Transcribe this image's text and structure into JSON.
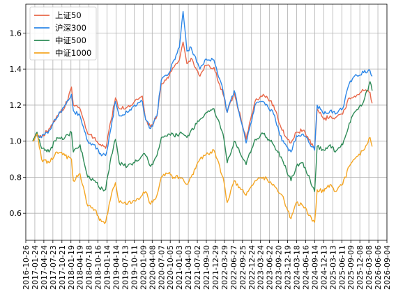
{
  "chart_data": {
    "type": "line",
    "title": "",
    "xlabel": "",
    "ylabel": "",
    "grid": true,
    "legend_position": "top-left",
    "xlim": [
      "2016-10-26",
      "2026-09-04"
    ],
    "ylim": [
      0.45,
      1.76
    ],
    "y_ticks": [
      0.6,
      0.8,
      1.0,
      1.2,
      1.4,
      1.6
    ],
    "y_tick_labels": [
      "0.6",
      "0.8",
      "1.0",
      "1.2",
      "1.4",
      "1.6"
    ],
    "x_ticks": [
      "2016-10-26",
      "2017-01-24",
      "2017-04-24",
      "2017-07-23",
      "2017-10-21",
      "2018-01-19",
      "2018-04-19",
      "2018-07-18",
      "2018-10-16",
      "2019-01-14",
      "2019-04-14",
      "2019-07-13",
      "2019-10-11",
      "2020-01-09",
      "2020-04-08",
      "2020-07-07",
      "2020-10-05",
      "2021-01-03",
      "2021-04-03",
      "2021-07-02",
      "2021-09-30",
      "2021-12-29",
      "2022-03-29",
      "2022-06-27",
      "2022-09-25",
      "2022-12-24",
      "2023-03-24",
      "2023-06-22",
      "2023-09-20",
      "2023-12-19",
      "2024-03-18",
      "2024-06-16",
      "2024-09-14",
      "2024-12-13",
      "2025-03-13",
      "2025-06-11",
      "2025-09-09",
      "2025-12-08",
      "2026-03-08",
      "2026-06-06",
      "2026-09-04"
    ],
    "series": [
      {
        "name": "上证50",
        "color": "#e8684a",
        "x": [
          "2017-01-03",
          "2017-02-15",
          "2017-04-01",
          "2017-06-15",
          "2017-09-01",
          "2017-11-20",
          "2018-01-24",
          "2018-02-12",
          "2018-04-20",
          "2018-07-05",
          "2018-09-15",
          "2018-10-30",
          "2018-12-31",
          "2019-02-25",
          "2019-04-08",
          "2019-05-15",
          "2019-08-05",
          "2019-10-15",
          "2019-12-31",
          "2020-02-03",
          "2020-03-23",
          "2020-05-25",
          "2020-07-08",
          "2020-09-15",
          "2020-11-10",
          "2021-01-04",
          "2021-02-10",
          "2021-03-20",
          "2021-05-01",
          "2021-07-28",
          "2021-09-15",
          "2021-12-15",
          "2022-03-15",
          "2022-04-26",
          "2022-07-05",
          "2022-10-31",
          "2023-01-28",
          "2023-04-20",
          "2023-08-01",
          "2023-10-25",
          "2024-01-22",
          "2024-03-15",
          "2024-05-20",
          "2024-09-13",
          "2024-10-08",
          "2024-12-15",
          "2025-02-15",
          "2025-04-08",
          "2025-06-20",
          "2025-08-25",
          "2025-10-15",
          "2026-01-15",
          "2026-03-20",
          "2026-04-10"
        ],
        "y": [
          1.0,
          1.04,
          1.02,
          1.07,
          1.14,
          1.19,
          1.3,
          1.2,
          1.18,
          1.04,
          1.02,
          0.98,
          0.96,
          1.12,
          1.24,
          1.18,
          1.19,
          1.22,
          1.25,
          1.12,
          1.08,
          1.14,
          1.32,
          1.35,
          1.41,
          1.45,
          1.55,
          1.43,
          1.46,
          1.36,
          1.42,
          1.41,
          1.26,
          1.16,
          1.27,
          1.01,
          1.22,
          1.26,
          1.2,
          1.06,
          0.99,
          1.05,
          1.06,
          0.96,
          1.18,
          1.12,
          1.14,
          1.13,
          1.15,
          1.24,
          1.25,
          1.28,
          1.27,
          1.21
        ]
      },
      {
        "name": "沪深300",
        "color": "#2d87e8",
        "x": [
          "2017-01-03",
          "2017-02-15",
          "2017-04-01",
          "2017-06-15",
          "2017-09-01",
          "2017-11-20",
          "2018-01-24",
          "2018-02-12",
          "2018-04-20",
          "2018-07-05",
          "2018-09-15",
          "2018-10-30",
          "2018-12-31",
          "2019-02-25",
          "2019-04-08",
          "2019-05-15",
          "2019-08-05",
          "2019-10-15",
          "2019-12-31",
          "2020-02-03",
          "2020-03-23",
          "2020-05-25",
          "2020-07-08",
          "2020-09-15",
          "2020-11-10",
          "2021-01-04",
          "2021-02-10",
          "2021-03-20",
          "2021-05-01",
          "2021-07-28",
          "2021-09-15",
          "2021-12-15",
          "2022-03-15",
          "2022-04-26",
          "2022-07-05",
          "2022-10-31",
          "2023-01-28",
          "2023-04-20",
          "2023-08-01",
          "2023-10-25",
          "2024-01-22",
          "2024-03-15",
          "2024-05-20",
          "2024-09-13",
          "2024-10-08",
          "2024-12-15",
          "2025-02-15",
          "2025-04-08",
          "2025-06-20",
          "2025-08-25",
          "2025-10-15",
          "2026-01-15",
          "2026-03-20",
          "2026-04-10"
        ],
        "y": [
          1.0,
          1.03,
          1.02,
          1.06,
          1.13,
          1.2,
          1.26,
          1.17,
          1.14,
          1.0,
          0.98,
          0.93,
          0.92,
          1.08,
          1.22,
          1.14,
          1.16,
          1.2,
          1.22,
          1.12,
          1.07,
          1.14,
          1.34,
          1.37,
          1.45,
          1.52,
          1.72,
          1.5,
          1.52,
          1.4,
          1.45,
          1.45,
          1.28,
          1.16,
          1.28,
          0.99,
          1.2,
          1.22,
          1.15,
          1.0,
          0.94,
          1.03,
          1.04,
          0.95,
          1.2,
          1.15,
          1.17,
          1.15,
          1.18,
          1.32,
          1.36,
          1.38,
          1.39,
          1.36
        ]
      },
      {
        "name": "中证500",
        "color": "#2e8b57",
        "x": [
          "2017-01-03",
          "2017-02-15",
          "2017-04-01",
          "2017-06-15",
          "2017-09-01",
          "2017-11-20",
          "2018-01-24",
          "2018-02-12",
          "2018-04-20",
          "2018-07-05",
          "2018-09-15",
          "2018-10-30",
          "2018-12-31",
          "2019-02-25",
          "2019-04-08",
          "2019-05-15",
          "2019-08-05",
          "2019-10-15",
          "2019-12-31",
          "2020-02-03",
          "2020-03-23",
          "2020-05-25",
          "2020-07-08",
          "2020-09-15",
          "2020-11-10",
          "2021-01-04",
          "2021-02-10",
          "2021-03-20",
          "2021-05-01",
          "2021-07-28",
          "2021-09-15",
          "2021-12-15",
          "2022-03-15",
          "2022-04-26",
          "2022-07-05",
          "2022-10-31",
          "2023-01-28",
          "2023-04-20",
          "2023-08-01",
          "2023-10-25",
          "2024-01-22",
          "2024-03-15",
          "2024-05-20",
          "2024-09-13",
          "2024-10-08",
          "2024-12-15",
          "2025-02-15",
          "2025-04-08",
          "2025-06-20",
          "2025-08-25",
          "2025-10-15",
          "2026-01-15",
          "2026-03-20",
          "2026-04-10"
        ],
        "y": [
          1.0,
          1.05,
          0.96,
          0.94,
          1.02,
          1.02,
          1.05,
          0.94,
          0.98,
          0.8,
          0.78,
          0.74,
          0.73,
          0.92,
          1.01,
          0.88,
          0.86,
          0.88,
          0.92,
          0.92,
          0.86,
          0.92,
          1.02,
          1.04,
          1.03,
          1.04,
          1.04,
          1.02,
          1.06,
          1.12,
          1.15,
          1.18,
          1.04,
          0.88,
          1.0,
          0.87,
          1.01,
          1.04,
          0.98,
          0.9,
          0.78,
          0.86,
          0.88,
          0.72,
          0.97,
          0.95,
          0.98,
          0.94,
          0.98,
          1.1,
          1.16,
          1.22,
          1.33,
          1.28
        ]
      },
      {
        "name": "中证1000",
        "color": "#f5a623",
        "x": [
          "2017-01-03",
          "2017-02-15",
          "2017-04-01",
          "2017-06-15",
          "2017-09-01",
          "2017-11-20",
          "2018-01-24",
          "2018-02-12",
          "2018-04-20",
          "2018-07-05",
          "2018-09-15",
          "2018-10-30",
          "2018-12-31",
          "2019-02-25",
          "2019-04-08",
          "2019-05-15",
          "2019-08-05",
          "2019-10-15",
          "2019-12-31",
          "2020-02-03",
          "2020-03-23",
          "2020-05-25",
          "2020-07-08",
          "2020-09-15",
          "2020-11-10",
          "2021-01-04",
          "2021-02-10",
          "2021-03-20",
          "2021-05-01",
          "2021-07-28",
          "2021-09-15",
          "2021-12-15",
          "2022-03-15",
          "2022-04-26",
          "2022-07-05",
          "2022-10-31",
          "2023-01-28",
          "2023-04-20",
          "2023-08-01",
          "2023-10-25",
          "2024-01-22",
          "2024-03-15",
          "2024-05-20",
          "2024-09-13",
          "2024-10-08",
          "2024-12-15",
          "2025-02-15",
          "2025-04-08",
          "2025-06-20",
          "2025-08-25",
          "2025-10-15",
          "2026-01-15",
          "2026-03-20",
          "2026-04-10"
        ],
        "y": [
          1.0,
          1.04,
          0.9,
          0.88,
          0.94,
          0.92,
          0.9,
          0.78,
          0.82,
          0.64,
          0.62,
          0.56,
          0.55,
          0.7,
          0.77,
          0.66,
          0.65,
          0.67,
          0.7,
          0.72,
          0.65,
          0.7,
          0.8,
          0.82,
          0.8,
          0.8,
          0.79,
          0.76,
          0.8,
          0.9,
          0.92,
          0.95,
          0.8,
          0.66,
          0.78,
          0.7,
          0.78,
          0.8,
          0.76,
          0.7,
          0.57,
          0.66,
          0.64,
          0.55,
          0.73,
          0.72,
          0.76,
          0.72,
          0.76,
          0.86,
          0.9,
          0.95,
          1.02,
          0.97
        ]
      }
    ]
  }
}
